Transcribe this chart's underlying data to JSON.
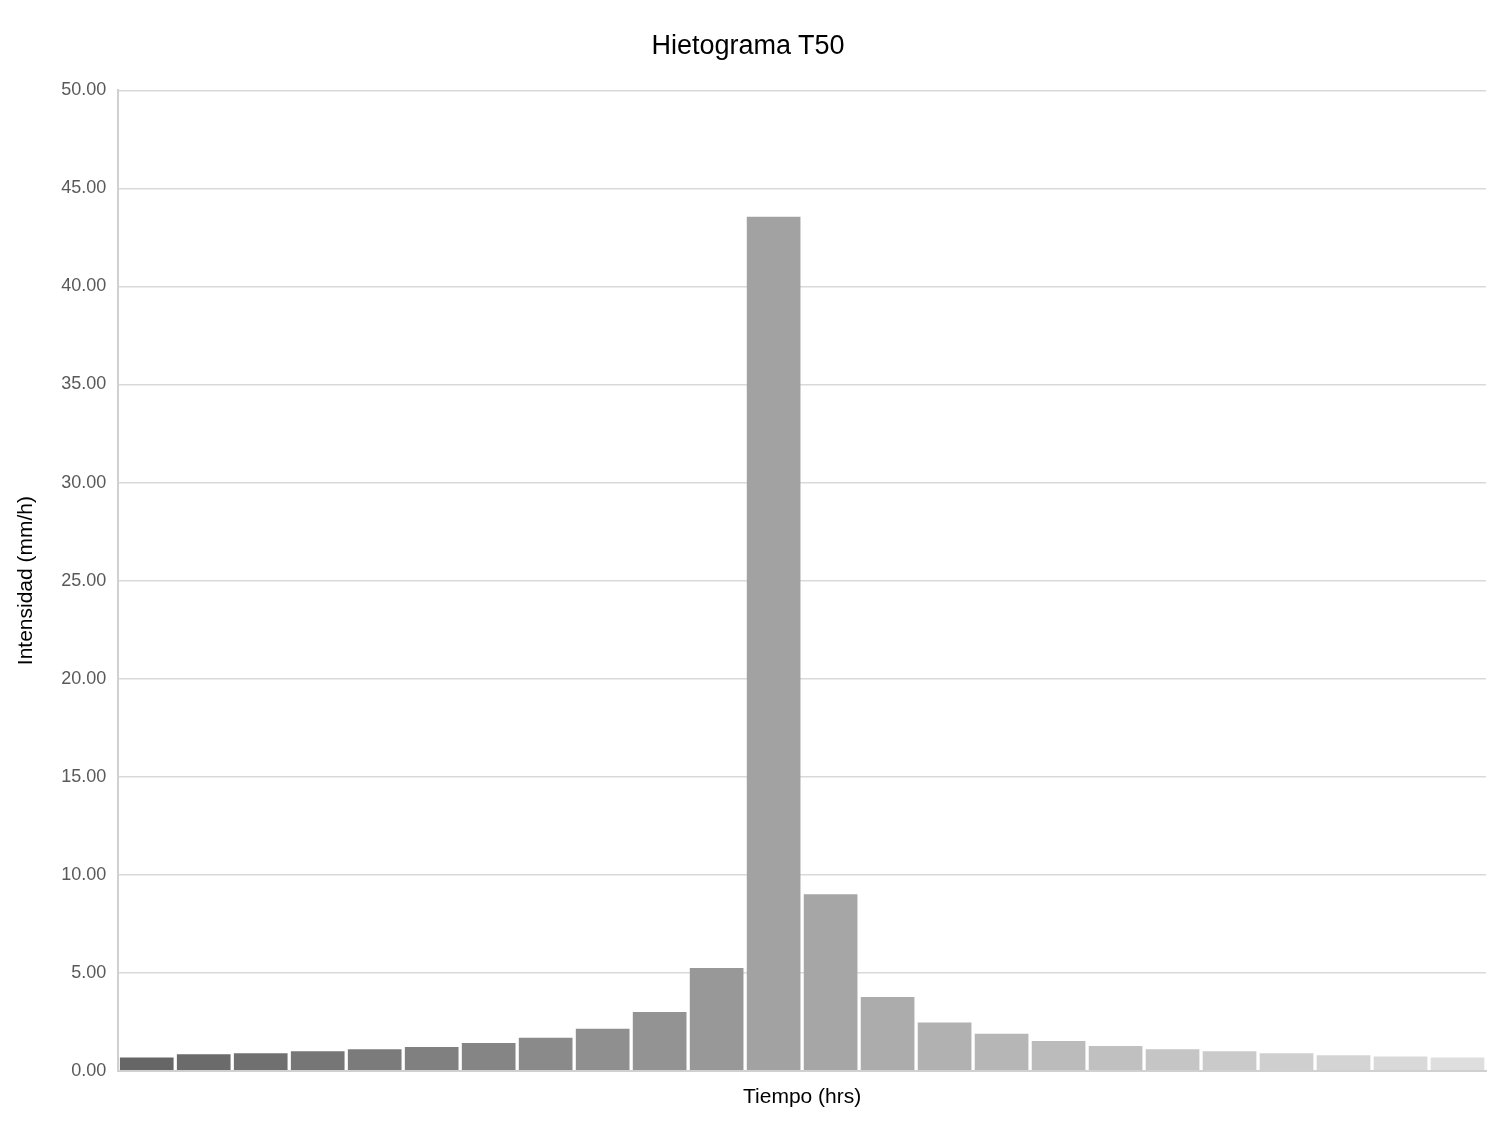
{
  "chart_data": {
    "type": "bar",
    "title": "Hietograma T50",
    "xlabel": "Tiempo (hrs)",
    "ylabel": "Intensidad (mm/h)",
    "categories": [
      null,
      null,
      null,
      null,
      null,
      null,
      null,
      null,
      null,
      null,
      null,
      null,
      null,
      null,
      null,
      null,
      null,
      null,
      null,
      null,
      null,
      null,
      null,
      null
    ],
    "values": [
      0.68,
      0.84,
      0.89,
      1.0,
      1.1,
      1.21,
      1.42,
      1.68,
      2.15,
      3.0,
      5.24,
      43.55,
      9.01,
      3.77,
      2.46,
      1.89,
      1.52,
      1.26,
      1.1,
      1.0,
      0.89,
      0.79,
      0.73,
      0.68
    ],
    "colors": [
      "#666666",
      "#6b6b6b",
      "#707070",
      "#767676",
      "#7b7b7b",
      "#808080",
      "#858585",
      "#8a8a8a",
      "#8f8f8f",
      "#939393",
      "#989898",
      "#a2a2a2",
      "#a6a6a6",
      "#acacac",
      "#b1b1b1",
      "#b6b6b6",
      "#bbbbbb",
      "#c0c0c0",
      "#c5c5c5",
      "#cacaca",
      "#cfcfcf",
      "#d4d4d4",
      "#d9d9d9",
      "#dedede"
    ],
    "ylim": [
      0,
      50
    ],
    "yticks": [
      {
        "value": 0,
        "label": "0.00"
      },
      {
        "value": 5,
        "label": "5.00"
      },
      {
        "value": 10,
        "label": "10.00"
      },
      {
        "value": 15,
        "label": "15.00"
      },
      {
        "value": 20,
        "label": "20.00"
      },
      {
        "value": 25,
        "label": "25.00"
      },
      {
        "value": 30,
        "label": "30.00"
      },
      {
        "value": 35,
        "label": "35.00"
      },
      {
        "value": 40,
        "label": "40.00"
      },
      {
        "value": 45,
        "label": "45.00"
      },
      {
        "value": 50,
        "label": "50.00"
      }
    ],
    "grid": "y",
    "legend": false
  }
}
